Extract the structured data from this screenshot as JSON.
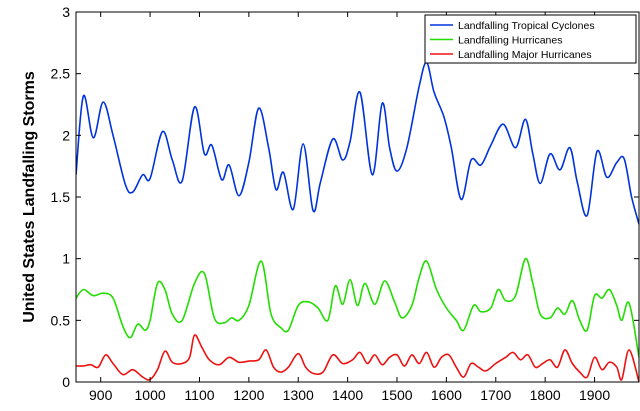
{
  "chart_data": {
    "type": "line",
    "title": "",
    "xlabel": "",
    "ylabel": "United States Landfalling Storms",
    "xlim": [
      850,
      1990
    ],
    "ylim": [
      0,
      3
    ],
    "xticks": [
      900,
      1000,
      1100,
      1200,
      1300,
      1400,
      1500,
      1600,
      1700,
      1800,
      1900
    ],
    "yticks": [
      0,
      0.5,
      1,
      1.5,
      2,
      2.5,
      3
    ],
    "grid": false,
    "legend_position": "top-right",
    "series": [
      {
        "name": "Landfalling Tropical Cyclones",
        "color": "#0033dd",
        "points": [
          [
            850,
            1.68
          ],
          [
            865,
            2.32
          ],
          [
            885,
            1.98
          ],
          [
            905,
            2.27
          ],
          [
            925,
            2.0
          ],
          [
            950,
            1.6
          ],
          [
            965,
            1.54
          ],
          [
            985,
            1.68
          ],
          [
            1000,
            1.65
          ],
          [
            1025,
            2.03
          ],
          [
            1045,
            1.8
          ],
          [
            1065,
            1.63
          ],
          [
            1090,
            2.23
          ],
          [
            1110,
            1.85
          ],
          [
            1125,
            1.92
          ],
          [
            1145,
            1.64
          ],
          [
            1160,
            1.76
          ],
          [
            1180,
            1.51
          ],
          [
            1200,
            1.78
          ],
          [
            1220,
            2.22
          ],
          [
            1240,
            1.9
          ],
          [
            1255,
            1.56
          ],
          [
            1270,
            1.7
          ],
          [
            1290,
            1.4
          ],
          [
            1310,
            1.93
          ],
          [
            1330,
            1.39
          ],
          [
            1345,
            1.62
          ],
          [
            1370,
            1.97
          ],
          [
            1390,
            1.8
          ],
          [
            1405,
            1.95
          ],
          [
            1425,
            2.35
          ],
          [
            1450,
            1.68
          ],
          [
            1470,
            2.26
          ],
          [
            1485,
            1.9
          ],
          [
            1500,
            1.71
          ],
          [
            1520,
            1.9
          ],
          [
            1545,
            2.4
          ],
          [
            1560,
            2.59
          ],
          [
            1575,
            2.35
          ],
          [
            1595,
            2.15
          ],
          [
            1610,
            1.9
          ],
          [
            1630,
            1.48
          ],
          [
            1650,
            1.8
          ],
          [
            1670,
            1.76
          ],
          [
            1690,
            1.92
          ],
          [
            1715,
            2.09
          ],
          [
            1740,
            1.9
          ],
          [
            1760,
            2.13
          ],
          [
            1775,
            1.85
          ],
          [
            1790,
            1.61
          ],
          [
            1810,
            1.85
          ],
          [
            1830,
            1.72
          ],
          [
            1850,
            1.9
          ],
          [
            1865,
            1.62
          ],
          [
            1885,
            1.35
          ],
          [
            1905,
            1.87
          ],
          [
            1925,
            1.66
          ],
          [
            1945,
            1.78
          ],
          [
            1960,
            1.81
          ],
          [
            1975,
            1.5
          ],
          [
            1990,
            1.28
          ]
        ]
      },
      {
        "name": "Landfalling Hurricanes",
        "color": "#22dd00",
        "points": [
          [
            850,
            0.68
          ],
          [
            865,
            0.75
          ],
          [
            885,
            0.7
          ],
          [
            905,
            0.72
          ],
          [
            925,
            0.68
          ],
          [
            945,
            0.45
          ],
          [
            960,
            0.36
          ],
          [
            975,
            0.47
          ],
          [
            990,
            0.42
          ],
          [
            1000,
            0.5
          ],
          [
            1015,
            0.8
          ],
          [
            1030,
            0.75
          ],
          [
            1045,
            0.55
          ],
          [
            1065,
            0.5
          ],
          [
            1090,
            0.8
          ],
          [
            1110,
            0.88
          ],
          [
            1130,
            0.52
          ],
          [
            1150,
            0.48
          ],
          [
            1165,
            0.52
          ],
          [
            1180,
            0.5
          ],
          [
            1200,
            0.62
          ],
          [
            1225,
            0.98
          ],
          [
            1245,
            0.55
          ],
          [
            1265,
            0.44
          ],
          [
            1280,
            0.42
          ],
          [
            1300,
            0.62
          ],
          [
            1320,
            0.65
          ],
          [
            1340,
            0.6
          ],
          [
            1360,
            0.5
          ],
          [
            1375,
            0.78
          ],
          [
            1390,
            0.63
          ],
          [
            1405,
            0.83
          ],
          [
            1420,
            0.62
          ],
          [
            1435,
            0.8
          ],
          [
            1455,
            0.63
          ],
          [
            1475,
            0.82
          ],
          [
            1495,
            0.65
          ],
          [
            1510,
            0.52
          ],
          [
            1530,
            0.62
          ],
          [
            1545,
            0.85
          ],
          [
            1560,
            0.98
          ],
          [
            1580,
            0.75
          ],
          [
            1600,
            0.6
          ],
          [
            1620,
            0.5
          ],
          [
            1635,
            0.42
          ],
          [
            1655,
            0.62
          ],
          [
            1670,
            0.57
          ],
          [
            1690,
            0.6
          ],
          [
            1705,
            0.75
          ],
          [
            1720,
            0.66
          ],
          [
            1740,
            0.7
          ],
          [
            1760,
            1.0
          ],
          [
            1775,
            0.8
          ],
          [
            1790,
            0.55
          ],
          [
            1810,
            0.52
          ],
          [
            1825,
            0.6
          ],
          [
            1840,
            0.55
          ],
          [
            1855,
            0.66
          ],
          [
            1870,
            0.5
          ],
          [
            1885,
            0.42
          ],
          [
            1900,
            0.7
          ],
          [
            1915,
            0.68
          ],
          [
            1930,
            0.75
          ],
          [
            1945,
            0.62
          ],
          [
            1955,
            0.5
          ],
          [
            1970,
            0.64
          ],
          [
            1990,
            0.2
          ]
        ]
      },
      {
        "name": "Landfalling Major Hurricanes",
        "color": "#ee1111",
        "points": [
          [
            850,
            0.13
          ],
          [
            865,
            0.13
          ],
          [
            880,
            0.14
          ],
          [
            895,
            0.12
          ],
          [
            910,
            0.22
          ],
          [
            925,
            0.15
          ],
          [
            945,
            0.06
          ],
          [
            965,
            0.1
          ],
          [
            985,
            0.04
          ],
          [
            1000,
            0.02
          ],
          [
            1015,
            0.1
          ],
          [
            1030,
            0.25
          ],
          [
            1045,
            0.16
          ],
          [
            1065,
            0.15
          ],
          [
            1080,
            0.2
          ],
          [
            1090,
            0.38
          ],
          [
            1105,
            0.28
          ],
          [
            1120,
            0.18
          ],
          [
            1140,
            0.14
          ],
          [
            1160,
            0.2
          ],
          [
            1180,
            0.16
          ],
          [
            1200,
            0.17
          ],
          [
            1220,
            0.18
          ],
          [
            1235,
            0.26
          ],
          [
            1250,
            0.12
          ],
          [
            1265,
            0.08
          ],
          [
            1280,
            0.12
          ],
          [
            1300,
            0.23
          ],
          [
            1315,
            0.12
          ],
          [
            1330,
            0.07
          ],
          [
            1350,
            0.08
          ],
          [
            1370,
            0.22
          ],
          [
            1390,
            0.15
          ],
          [
            1410,
            0.18
          ],
          [
            1425,
            0.24
          ],
          [
            1440,
            0.15
          ],
          [
            1455,
            0.22
          ],
          [
            1470,
            0.14
          ],
          [
            1485,
            0.2
          ],
          [
            1500,
            0.22
          ],
          [
            1515,
            0.13
          ],
          [
            1530,
            0.22
          ],
          [
            1545,
            0.15
          ],
          [
            1560,
            0.24
          ],
          [
            1575,
            0.12
          ],
          [
            1590,
            0.2
          ],
          [
            1605,
            0.22
          ],
          [
            1620,
            0.12
          ],
          [
            1635,
            0.04
          ],
          [
            1650,
            0.15
          ],
          [
            1665,
            0.12
          ],
          [
            1680,
            0.09
          ],
          [
            1700,
            0.15
          ],
          [
            1720,
            0.2
          ],
          [
            1735,
            0.24
          ],
          [
            1750,
            0.18
          ],
          [
            1765,
            0.22
          ],
          [
            1780,
            0.12
          ],
          [
            1795,
            0.15
          ],
          [
            1810,
            0.18
          ],
          [
            1825,
            0.12
          ],
          [
            1840,
            0.26
          ],
          [
            1855,
            0.15
          ],
          [
            1870,
            0.08
          ],
          [
            1885,
            0.04
          ],
          [
            1900,
            0.2
          ],
          [
            1915,
            0.1
          ],
          [
            1930,
            0.16
          ],
          [
            1945,
            0.12
          ],
          [
            1955,
            0.02
          ],
          [
            1970,
            0.26
          ],
          [
            1990,
            0.0
          ]
        ]
      }
    ]
  }
}
